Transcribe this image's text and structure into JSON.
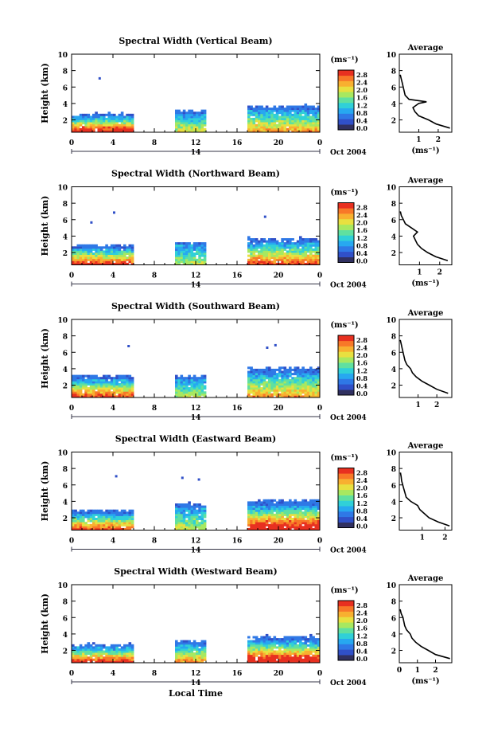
{
  "xlabel": "Local Time",
  "colorbar": {
    "unit": "(ms⁻¹)",
    "ticks": [
      "2.8",
      "2.4",
      "2.0",
      "1.6",
      "1.2",
      "0.8",
      "0.4",
      "0.0"
    ],
    "colors": [
      "#303060",
      "#3050c8",
      "#2f78e6",
      "#27a8f0",
      "#30d0d8",
      "#60e0a0",
      "#a8e860",
      "#e8e040",
      "#f8b030",
      "#f87828",
      "#e83020"
    ]
  },
  "colors": {
    "axes": "#000000",
    "average_line": "#000000"
  },
  "chart_data": [
    {
      "type": "heatmap",
      "title": "Spectral Width (Vertical Beam)",
      "ylabel": "Height (km)",
      "xticks": [
        "0",
        "4",
        "8",
        "12",
        "16",
        "20",
        "0"
      ],
      "xlim": [
        0,
        24
      ],
      "yticks": [
        "2",
        "4",
        "6",
        "8",
        "10"
      ],
      "ylim": [
        0.5,
        10
      ],
      "date_axis": {
        "day": "14",
        "month_year": "Oct 2004"
      },
      "data_blocks": [
        {
          "t_start": 0,
          "t_end": 6,
          "top_km": 2.6,
          "peak": 2.4
        },
        {
          "t_start": 10,
          "t_end": 13,
          "top_km": 3.0,
          "peak": 1.2
        },
        {
          "t_start": 17,
          "t_end": 24,
          "top_km": 3.6,
          "peak": 1.6
        }
      ],
      "isolated_points": [
        {
          "t": 2.6,
          "h": 7.2
        }
      ],
      "average_profile": {
        "title": "Average",
        "xlabel": "(ms⁻¹)",
        "xticks": [
          "1",
          "2"
        ],
        "xlim": [
          0,
          2.7
        ],
        "yticks": [
          "2",
          "4",
          "6",
          "8",
          "10"
        ],
        "heights_km": [
          1,
          1.5,
          2,
          2.5,
          3,
          3.5,
          4,
          4.2,
          4.5,
          5,
          5.5,
          6,
          6.5,
          7,
          7.5
        ],
        "values": [
          2.6,
          1.9,
          1.5,
          1.0,
          0.8,
          0.7,
          1.0,
          1.4,
          0.5,
          0.3,
          0.25,
          0.2,
          0.15,
          0.1,
          0.05
        ]
      }
    },
    {
      "type": "heatmap",
      "title": "Spectral Width (Northward Beam)",
      "ylabel": "Height (km)",
      "xticks": [
        "0",
        "4",
        "8",
        "12",
        "16",
        "20",
        "0"
      ],
      "xlim": [
        0,
        24
      ],
      "yticks": [
        "2",
        "4",
        "6",
        "8",
        "10"
      ],
      "ylim": [
        0.5,
        10
      ],
      "date_axis": {
        "day": "14",
        "month_year": "Oct 2004"
      },
      "data_blocks": [
        {
          "t_start": 0,
          "t_end": 6,
          "top_km": 2.8,
          "peak": 2.2
        },
        {
          "t_start": 10,
          "t_end": 13,
          "top_km": 3.2,
          "peak": 1.0
        },
        {
          "t_start": 17,
          "t_end": 24,
          "top_km": 3.6,
          "peak": 2.0
        }
      ],
      "isolated_points": [
        {
          "t": 4.0,
          "h": 7.0
        },
        {
          "t": 1.8,
          "h": 5.8
        },
        {
          "t": 18.6,
          "h": 6.5
        }
      ],
      "average_profile": {
        "title": "Average",
        "xlabel": "(ms⁻¹)",
        "xticks": [
          "1",
          "2"
        ],
        "xlim": [
          0,
          2.6
        ],
        "yticks": [
          "2",
          "4",
          "6",
          "8",
          "10"
        ],
        "heights_km": [
          1,
          1.5,
          2,
          2.5,
          3,
          3.5,
          4,
          4.5,
          5,
          5.5,
          6,
          6.5,
          7
        ],
        "values": [
          2.4,
          1.8,
          1.4,
          1.1,
          0.9,
          0.8,
          0.7,
          0.9,
          0.6,
          0.3,
          0.2,
          0.1,
          0.05
        ]
      }
    },
    {
      "type": "heatmap",
      "title": "Spectral Width (Southward Beam)",
      "ylabel": "Height (km)",
      "xticks": [
        "0",
        "4",
        "8",
        "12",
        "16",
        "20",
        "0"
      ],
      "xlim": [
        0,
        24
      ],
      "yticks": [
        "2",
        "4",
        "6",
        "8",
        "10"
      ],
      "ylim": [
        0.5,
        10
      ],
      "date_axis": {
        "day": "14",
        "month_year": "Oct 2004"
      },
      "data_blocks": [
        {
          "t_start": 0,
          "t_end": 6,
          "top_km": 3.0,
          "peak": 2.0
        },
        {
          "t_start": 10,
          "t_end": 13,
          "top_km": 3.0,
          "peak": 1.0
        },
        {
          "t_start": 17,
          "t_end": 24,
          "top_km": 4.0,
          "peak": 1.6
        }
      ],
      "isolated_points": [
        {
          "t": 5.4,
          "h": 6.9
        },
        {
          "t": 18.8,
          "h": 6.7
        },
        {
          "t": 19.6,
          "h": 7.0
        }
      ],
      "average_profile": {
        "title": "Average",
        "xlabel": "",
        "xticks": [
          "1",
          "2"
        ],
        "xlim": [
          0,
          2.8
        ],
        "yticks": [
          "2",
          "4",
          "6",
          "8",
          "10"
        ],
        "heights_km": [
          1,
          1.5,
          2,
          2.5,
          3,
          3.5,
          4,
          4.5,
          5,
          5.5,
          6,
          6.5,
          7,
          7.5
        ],
        "values": [
          2.6,
          2.0,
          1.6,
          1.2,
          0.9,
          0.7,
          0.6,
          0.4,
          0.3,
          0.25,
          0.2,
          0.15,
          0.1,
          0.05
        ]
      }
    },
    {
      "type": "heatmap",
      "title": "Spectral Width (Eastward Beam)",
      "ylabel": "Height (km)",
      "xticks": [
        "0",
        "4",
        "8",
        "12",
        "16",
        "20",
        "0"
      ],
      "xlim": [
        0,
        24
      ],
      "yticks": [
        "2",
        "4",
        "6",
        "8",
        "10"
      ],
      "ylim": [
        0.5,
        10
      ],
      "date_axis": {
        "day": "14",
        "month_year": "Oct 2004"
      },
      "data_blocks": [
        {
          "t_start": 0,
          "t_end": 6,
          "top_km": 2.8,
          "peak": 2.0
        },
        {
          "t_start": 10,
          "t_end": 13,
          "top_km": 3.6,
          "peak": 1.0
        },
        {
          "t_start": 17,
          "t_end": 24,
          "top_km": 4.0,
          "peak": 2.6
        }
      ],
      "isolated_points": [
        {
          "t": 4.2,
          "h": 7.2
        },
        {
          "t": 10.6,
          "h": 7.0
        },
        {
          "t": 12.2,
          "h": 6.8
        }
      ],
      "average_profile": {
        "title": "Average",
        "xlabel": "",
        "xticks": [
          "1",
          "2"
        ],
        "xlim": [
          0,
          2.3
        ],
        "yticks": [
          "2",
          "4",
          "6",
          "8",
          "10"
        ],
        "heights_km": [
          1,
          1.5,
          2,
          2.5,
          3,
          3.5,
          4,
          4.5,
          5,
          5.5,
          6,
          6.5,
          7,
          7.5
        ],
        "values": [
          2.2,
          1.7,
          1.3,
          1.1,
          0.9,
          0.8,
          0.5,
          0.3,
          0.25,
          0.2,
          0.15,
          0.1,
          0.08,
          0.05
        ]
      }
    },
    {
      "type": "heatmap",
      "title": "Spectral Width (Westward Beam)",
      "ylabel": "Height (km)",
      "xticks": [
        "0",
        "4",
        "8",
        "12",
        "16",
        "20",
        "0"
      ],
      "xlim": [
        0,
        24
      ],
      "yticks": [
        "2",
        "4",
        "6",
        "8",
        "10"
      ],
      "ylim": [
        0.5,
        10
      ],
      "date_axis": {
        "day": "14",
        "month_year": "Oct 2004"
      },
      "data_blocks": [
        {
          "t_start": 0,
          "t_end": 6,
          "top_km": 2.6,
          "peak": 2.2
        },
        {
          "t_start": 10,
          "t_end": 13,
          "top_km": 3.0,
          "peak": 1.6
        },
        {
          "t_start": 17,
          "t_end": 24,
          "top_km": 3.6,
          "peak": 2.6
        }
      ],
      "isolated_points": [],
      "average_profile": {
        "title": "Average",
        "xlabel": "(ms⁻¹)",
        "xticks": [
          "0",
          "1",
          "2"
        ],
        "xlim": [
          0,
          2.9
        ],
        "yticks": [
          "2",
          "4",
          "6",
          "8",
          "10"
        ],
        "heights_km": [
          1,
          1.5,
          2,
          2.5,
          3,
          3.5,
          4,
          4.5,
          5,
          5.5,
          6,
          6.5,
          7
        ],
        "values": [
          2.8,
          2.0,
          1.6,
          1.2,
          0.9,
          0.7,
          0.6,
          0.4,
          0.3,
          0.25,
          0.2,
          0.1,
          0.05
        ]
      }
    }
  ]
}
